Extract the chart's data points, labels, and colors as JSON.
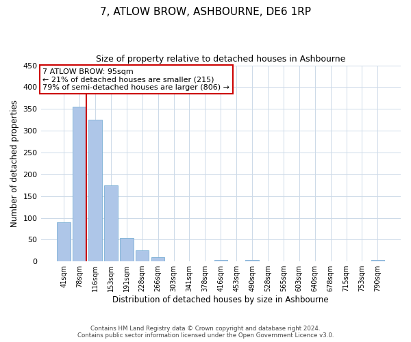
{
  "title": "7, ATLOW BROW, ASHBOURNE, DE6 1RP",
  "subtitle": "Size of property relative to detached houses in Ashbourne",
  "xlabel": "Distribution of detached houses by size in Ashbourne",
  "ylabel": "Number of detached properties",
  "bar_labels": [
    "41sqm",
    "78sqm",
    "116sqm",
    "153sqm",
    "191sqm",
    "228sqm",
    "266sqm",
    "303sqm",
    "341sqm",
    "378sqm",
    "416sqm",
    "453sqm",
    "490sqm",
    "528sqm",
    "565sqm",
    "603sqm",
    "640sqm",
    "678sqm",
    "715sqm",
    "753sqm",
    "790sqm"
  ],
  "bar_values": [
    90,
    355,
    325,
    175,
    53,
    25,
    9,
    0,
    0,
    0,
    3,
    0,
    3,
    0,
    0,
    0,
    0,
    0,
    0,
    0,
    3
  ],
  "bar_color": "#aec6e8",
  "bar_edgecolor": "#7bafd4",
  "property_line_color": "#cc0000",
  "ylim": [
    0,
    450
  ],
  "yticks": [
    0,
    50,
    100,
    150,
    200,
    250,
    300,
    350,
    400,
    450
  ],
  "annotation_title": "7 ATLOW BROW: 95sqm",
  "annotation_line1": "← 21% of detached houses are smaller (215)",
  "annotation_line2": "79% of semi-detached houses are larger (806) →",
  "annotation_box_color": "#ffffff",
  "annotation_box_edgecolor": "#cc0000",
  "footer1": "Contains HM Land Registry data © Crown copyright and database right 2024.",
  "footer2": "Contains public sector information licensed under the Open Government Licence v3.0.",
  "background_color": "#ffffff",
  "grid_color": "#ccd9e8",
  "title_fontsize": 11,
  "subtitle_fontsize": 9
}
